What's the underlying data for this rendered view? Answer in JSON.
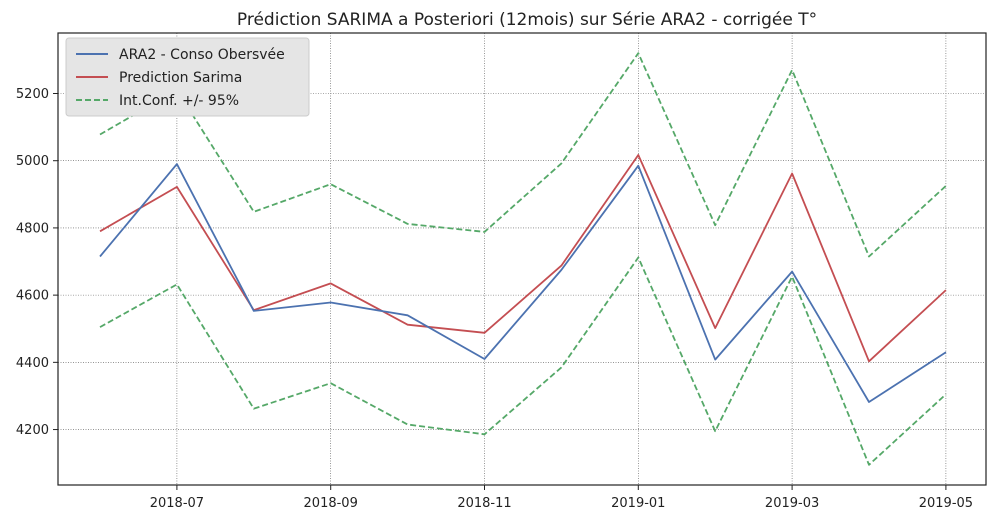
{
  "chart_data": {
    "type": "line",
    "title": "Prédiction SARIMA a Posteriori (12mois) sur Série ARA2 - corrigée T°",
    "xlabel": "",
    "ylabel": "",
    "x": [
      "2018-06",
      "2018-07",
      "2018-08",
      "2018-09",
      "2018-10",
      "2018-11",
      "2018-12",
      "2019-01",
      "2019-02",
      "2019-03",
      "2019-04",
      "2019-05"
    ],
    "x_tick_labels": [
      "2018-07",
      "2018-09",
      "2018-11",
      "2019-01",
      "2019-03",
      "2019-05"
    ],
    "y_ticks": [
      4200,
      4400,
      4600,
      4800,
      5000,
      5200
    ],
    "ylim": [
      4035,
      5380
    ],
    "grid": true,
    "legend_position": "top-left",
    "series": [
      {
        "name": "ARA2 - Conso Obersvée",
        "color": "#4c72b0",
        "style": "solid",
        "values": [
          4715,
          4990,
          4553,
          4578,
          4540,
          4410,
          4675,
          4985,
          4408,
          4670,
          4282,
          4430
        ]
      },
      {
        "name": "Prediction Sarima",
        "color": "#c44e52",
        "style": "solid",
        "values": [
          4790,
          4922,
          4555,
          4635,
          4512,
          4488,
          4688,
          5017,
          4502,
          4962,
          4403,
          4615
        ]
      },
      {
        "name": "Int.Conf. +/- 95%",
        "color": "#55a868",
        "style": "dashed",
        "values": [
          5078,
          5210,
          4848,
          4930,
          4812,
          4788,
          4992,
          5320,
          4808,
          5270,
          4715,
          4925
        ]
      },
      {
        "name": "",
        "color": "#55a868",
        "style": "dashed",
        "values": [
          4505,
          4632,
          4262,
          4338,
          4215,
          4186,
          4385,
          4712,
          4195,
          4655,
          4095,
          4305
        ]
      }
    ]
  }
}
